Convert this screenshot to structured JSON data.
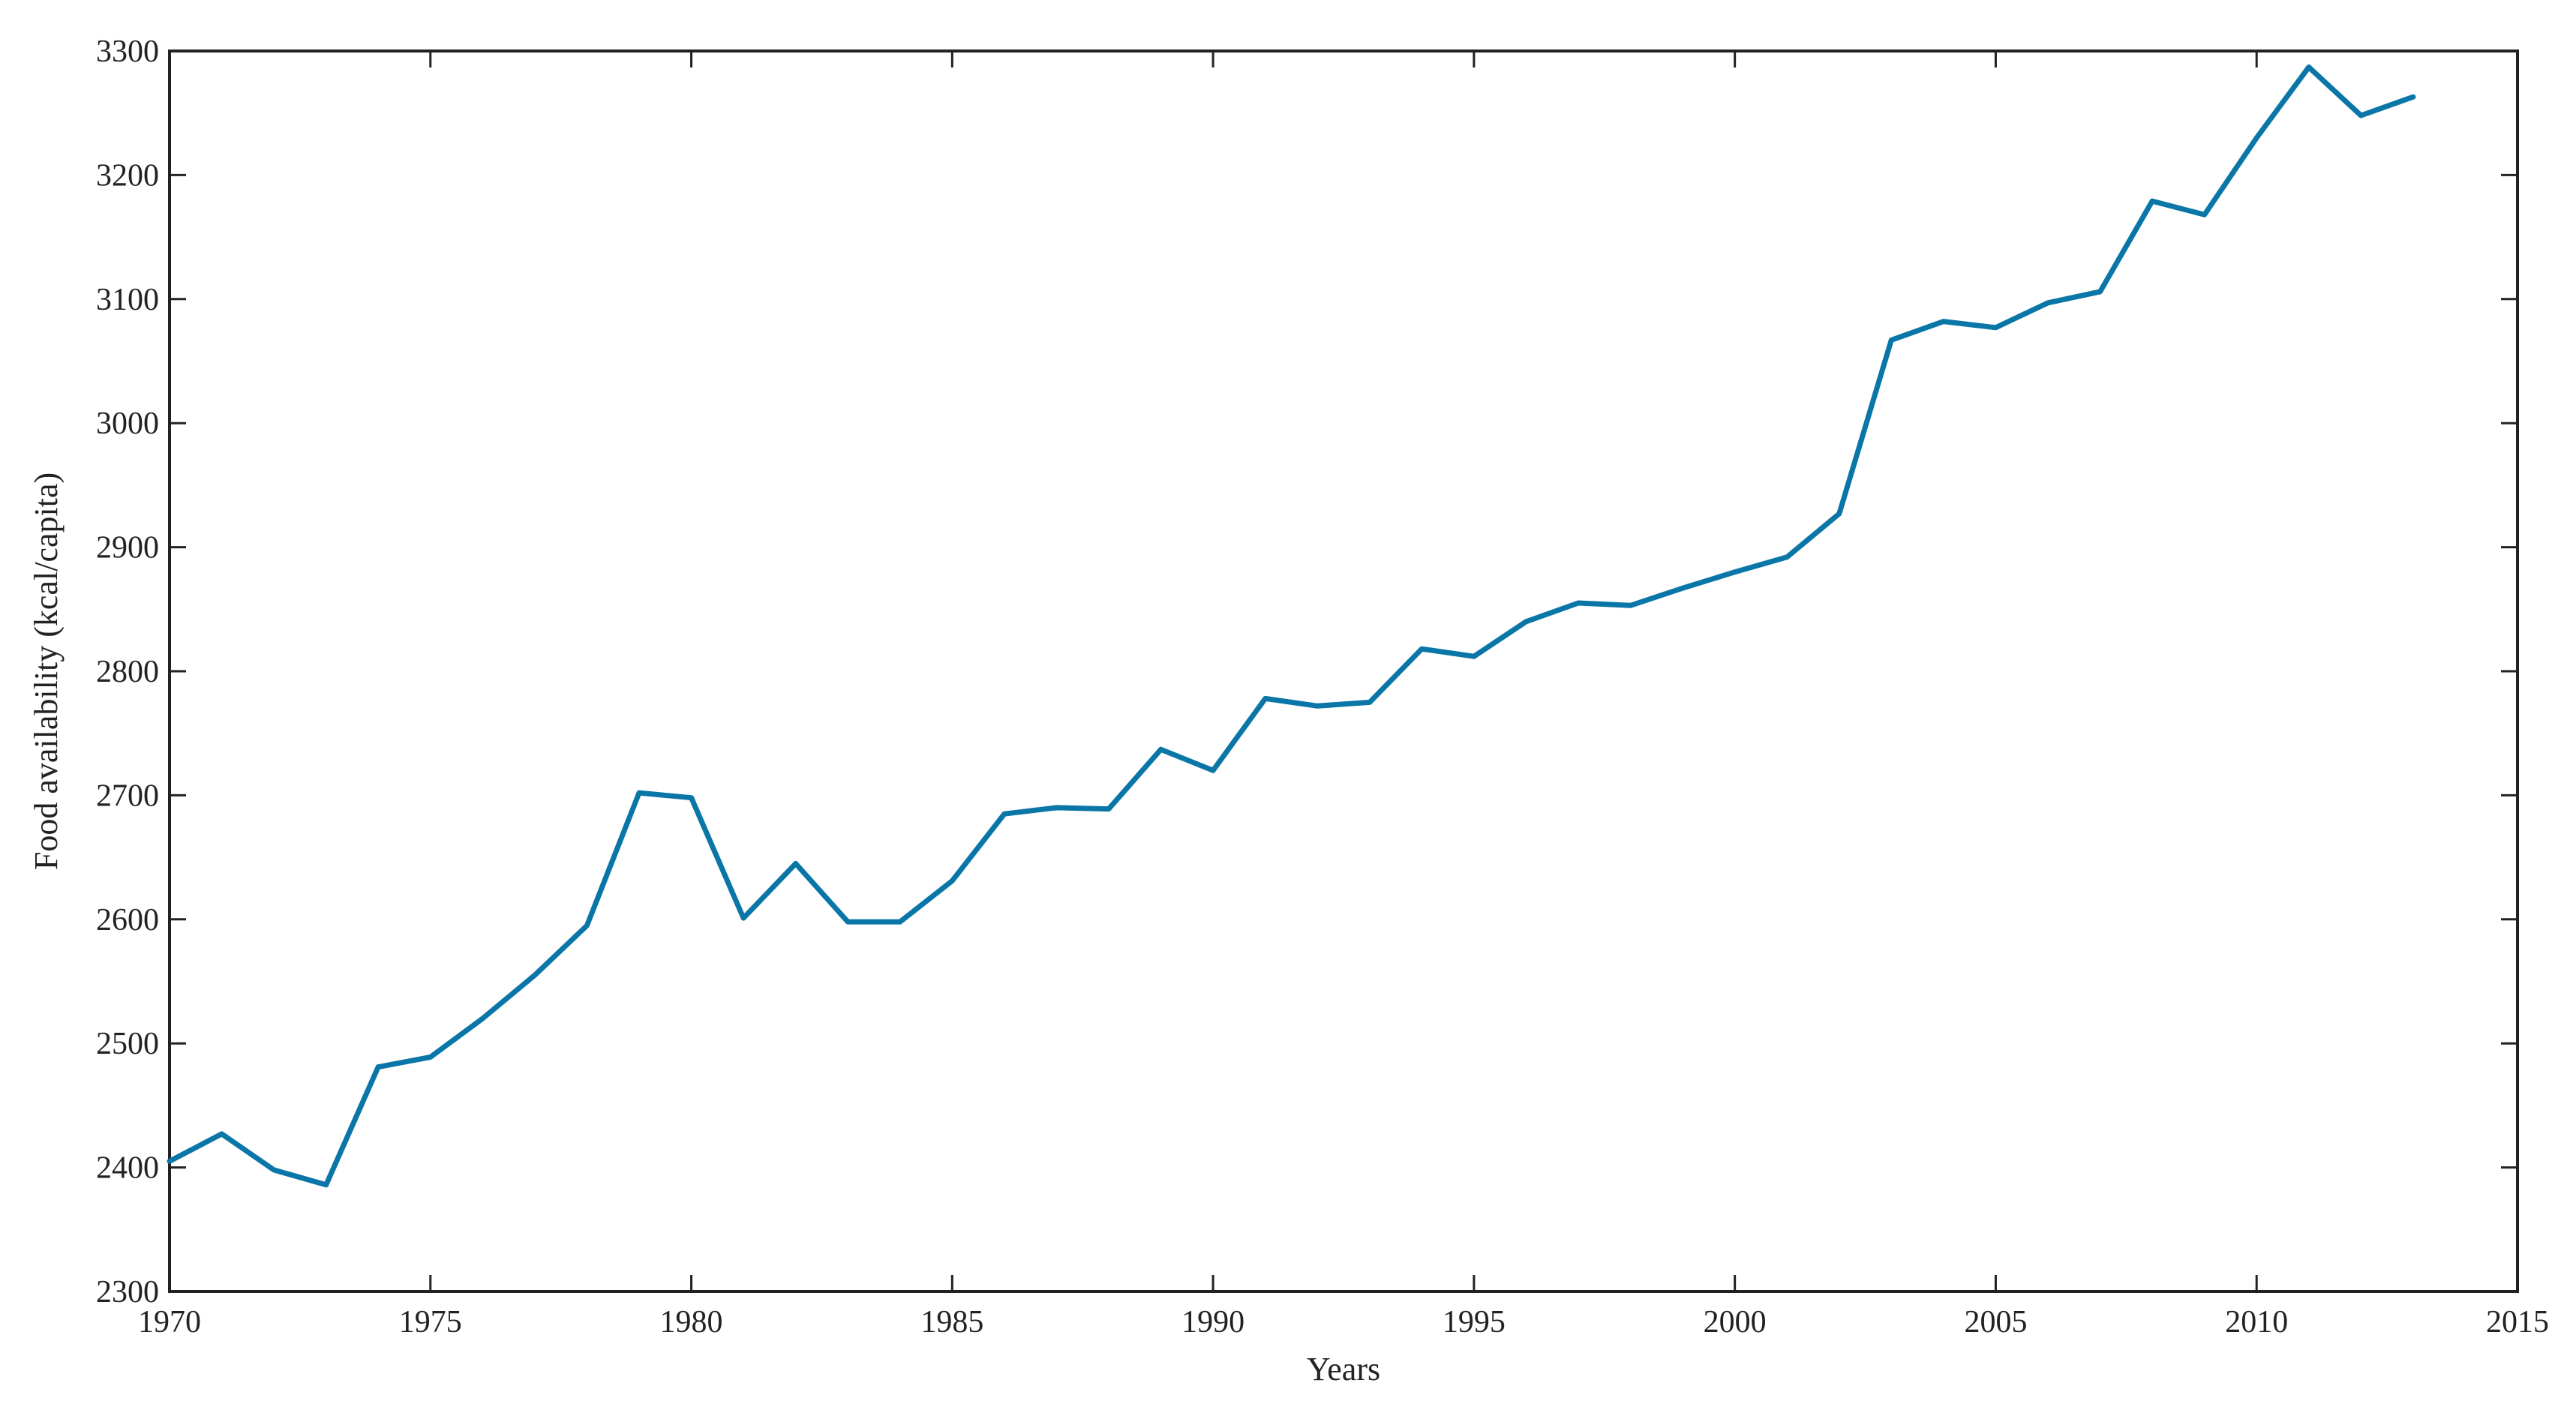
{
  "chart_data": {
    "type": "line",
    "title": "",
    "xlabel": "Years",
    "ylabel": "Food availability (kcal/capita)",
    "xlim": [
      1970,
      2015
    ],
    "ylim": [
      2300,
      3300
    ],
    "xticks": [
      1970,
      1975,
      1980,
      1985,
      1990,
      1995,
      2000,
      2005,
      2010,
      2015
    ],
    "yticks": [
      2300,
      2400,
      2500,
      2600,
      2700,
      2800,
      2900,
      3000,
      3100,
      3200,
      3300
    ],
    "grid": false,
    "line_color": "#0a76a8",
    "series": [
      {
        "x": [
          1970,
          1971,
          1972,
          1973,
          1974,
          1975,
          1976,
          1977,
          1978,
          1979,
          1980,
          1981,
          1982,
          1983,
          1984,
          1985,
          1986,
          1987,
          1988,
          1989,
          1990,
          1991,
          1992,
          1993,
          1994,
          1995,
          1996,
          1997,
          1998,
          1999,
          2000,
          2001,
          2002,
          2003,
          2004,
          2005,
          2006,
          2007,
          2008,
          2009,
          2010,
          2011,
          2012,
          2013
        ],
        "values": [
          2405,
          2427,
          2398,
          2386,
          2481,
          2489,
          2520,
          2555,
          2595,
          2702,
          2698,
          2601,
          2645,
          2598,
          2598,
          2631,
          2685,
          2690,
          2689,
          2737,
          2720,
          2778,
          2772,
          2775,
          2818,
          2812,
          2840,
          2855,
          2853,
          2867,
          2880,
          2892,
          2927,
          3067,
          3082,
          3077,
          3097,
          3106,
          3179,
          3168,
          3230,
          3287,
          3248,
          3263
        ]
      }
    ]
  }
}
